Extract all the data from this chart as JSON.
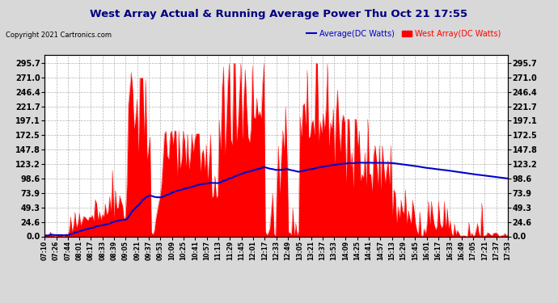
{
  "title": "West Array Actual & Running Average Power Thu Oct 21 17:55",
  "copyright": "Copyright 2021 Cartronics.com",
  "legend_avg": "Average(DC Watts)",
  "legend_west": "West Array(DC Watts)",
  "yticks": [
    0.0,
    24.6,
    49.3,
    73.9,
    98.6,
    123.2,
    147.8,
    172.5,
    197.1,
    221.7,
    246.4,
    271.0,
    295.7
  ],
  "ymax": 310,
  "bg_color": "#d8d8d8",
  "plot_bg_color": "#ffffff",
  "bar_color": "#ff0000",
  "avg_color": "#0000cc",
  "title_color": "#000080",
  "copyright_color": "#000000",
  "grid_color": "#aaaaaa",
  "xtick_labels": [
    "07:10",
    "07:26",
    "07:44",
    "08:01",
    "08:17",
    "08:33",
    "08:39",
    "09:05",
    "09:21",
    "09:37",
    "09:53",
    "10:09",
    "10:25",
    "10:41",
    "10:57",
    "11:13",
    "11:29",
    "11:45",
    "12:01",
    "12:17",
    "12:33",
    "12:49",
    "13:05",
    "13:21",
    "13:37",
    "13:53",
    "14:09",
    "14:25",
    "14:41",
    "14:57",
    "15:13",
    "15:29",
    "15:45",
    "16:01",
    "16:17",
    "16:33",
    "16:49",
    "17:05",
    "17:21",
    "17:37",
    "17:53"
  ]
}
